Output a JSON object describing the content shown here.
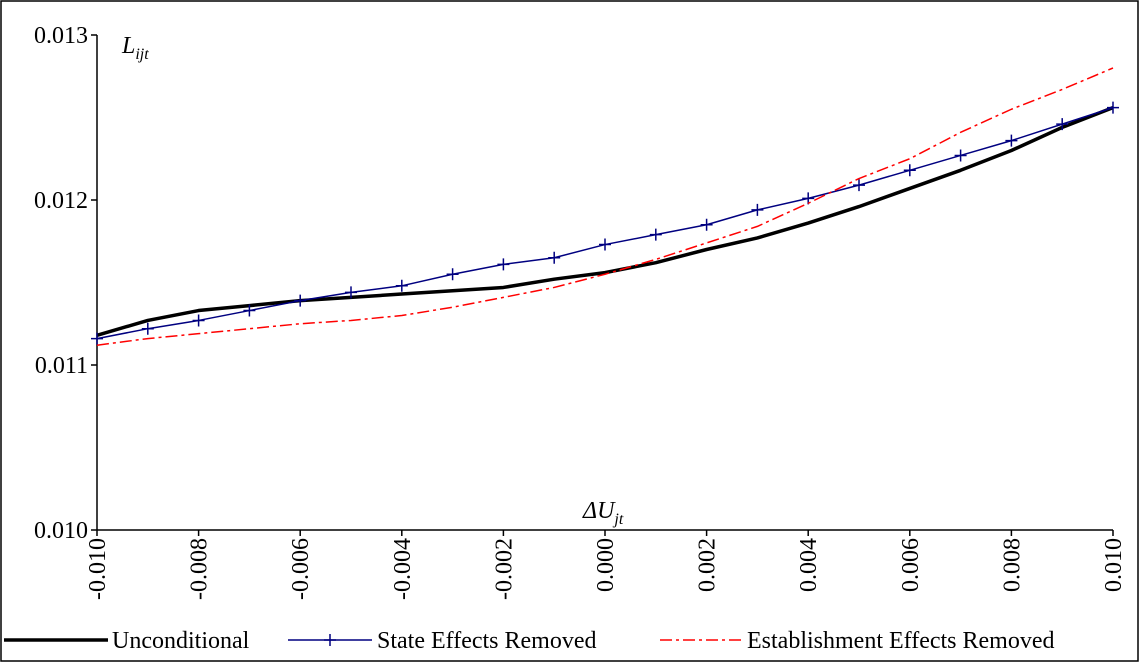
{
  "chart_data": {
    "type": "line",
    "ylabel": "L",
    "ylabel_sub": "ijt",
    "xlabel": "ΔU",
    "xlabel_sub": "jt",
    "x": [
      -0.01,
      -0.009,
      -0.008,
      -0.007,
      -0.006,
      -0.005,
      -0.004,
      -0.003,
      -0.002,
      -0.001,
      0.0,
      0.001,
      0.002,
      0.003,
      0.004,
      0.005,
      0.006,
      0.007,
      0.008,
      0.009,
      0.01
    ],
    "series": [
      {
        "name": "Unconditional",
        "color": "#000000",
        "line_style": "solid",
        "line_width": 3.5,
        "marker": "none",
        "values": [
          0.01118,
          0.01127,
          0.01133,
          0.01136,
          0.01139,
          0.01141,
          0.01143,
          0.01145,
          0.01147,
          0.01152,
          0.01156,
          0.01162,
          0.0117,
          0.01177,
          0.01186,
          0.01196,
          0.01207,
          0.01218,
          0.0123,
          0.01244,
          0.01256
        ]
      },
      {
        "name": "State Effects Removed",
        "color": "#000080",
        "line_style": "solid",
        "line_width": 1.5,
        "marker": "plus",
        "values": [
          0.01116,
          0.01122,
          0.01127,
          0.01133,
          0.01139,
          0.01144,
          0.01148,
          0.01155,
          0.01161,
          0.01165,
          0.01173,
          0.01179,
          0.01185,
          0.01194,
          0.01201,
          0.01209,
          0.01218,
          0.01227,
          0.01236,
          0.01246,
          0.01256
        ]
      },
      {
        "name": "Establishment Effects Removed",
        "color": "#ff0000",
        "line_style": "dashdot",
        "line_width": 1.5,
        "marker": "none",
        "values": [
          0.01112,
          0.01116,
          0.01119,
          0.01122,
          0.01125,
          0.01127,
          0.0113,
          0.01135,
          0.01141,
          0.01147,
          0.01155,
          0.01164,
          0.01174,
          0.01184,
          0.01198,
          0.01213,
          0.01225,
          0.01241,
          0.01255,
          0.01267,
          0.0128
        ]
      }
    ],
    "xlim": [
      -0.01,
      0.01
    ],
    "xticks": [
      {
        "value": -0.01,
        "label": "-0.010"
      },
      -0.008,
      -0.006,
      -0.004,
      -0.002,
      {
        "value": 0.0,
        "label": "0.000"
      },
      0.002,
      0.004,
      0.006,
      0.008,
      {
        "value": 0.01,
        "label": "0.010"
      }
    ],
    "ylim": [
      0.01,
      0.013
    ],
    "yticks": [
      {
        "value": 0.01,
        "label": "0.010"
      },
      0.011,
      0.012,
      0.013
    ],
    "grid": false,
    "legend": "bottom"
  }
}
